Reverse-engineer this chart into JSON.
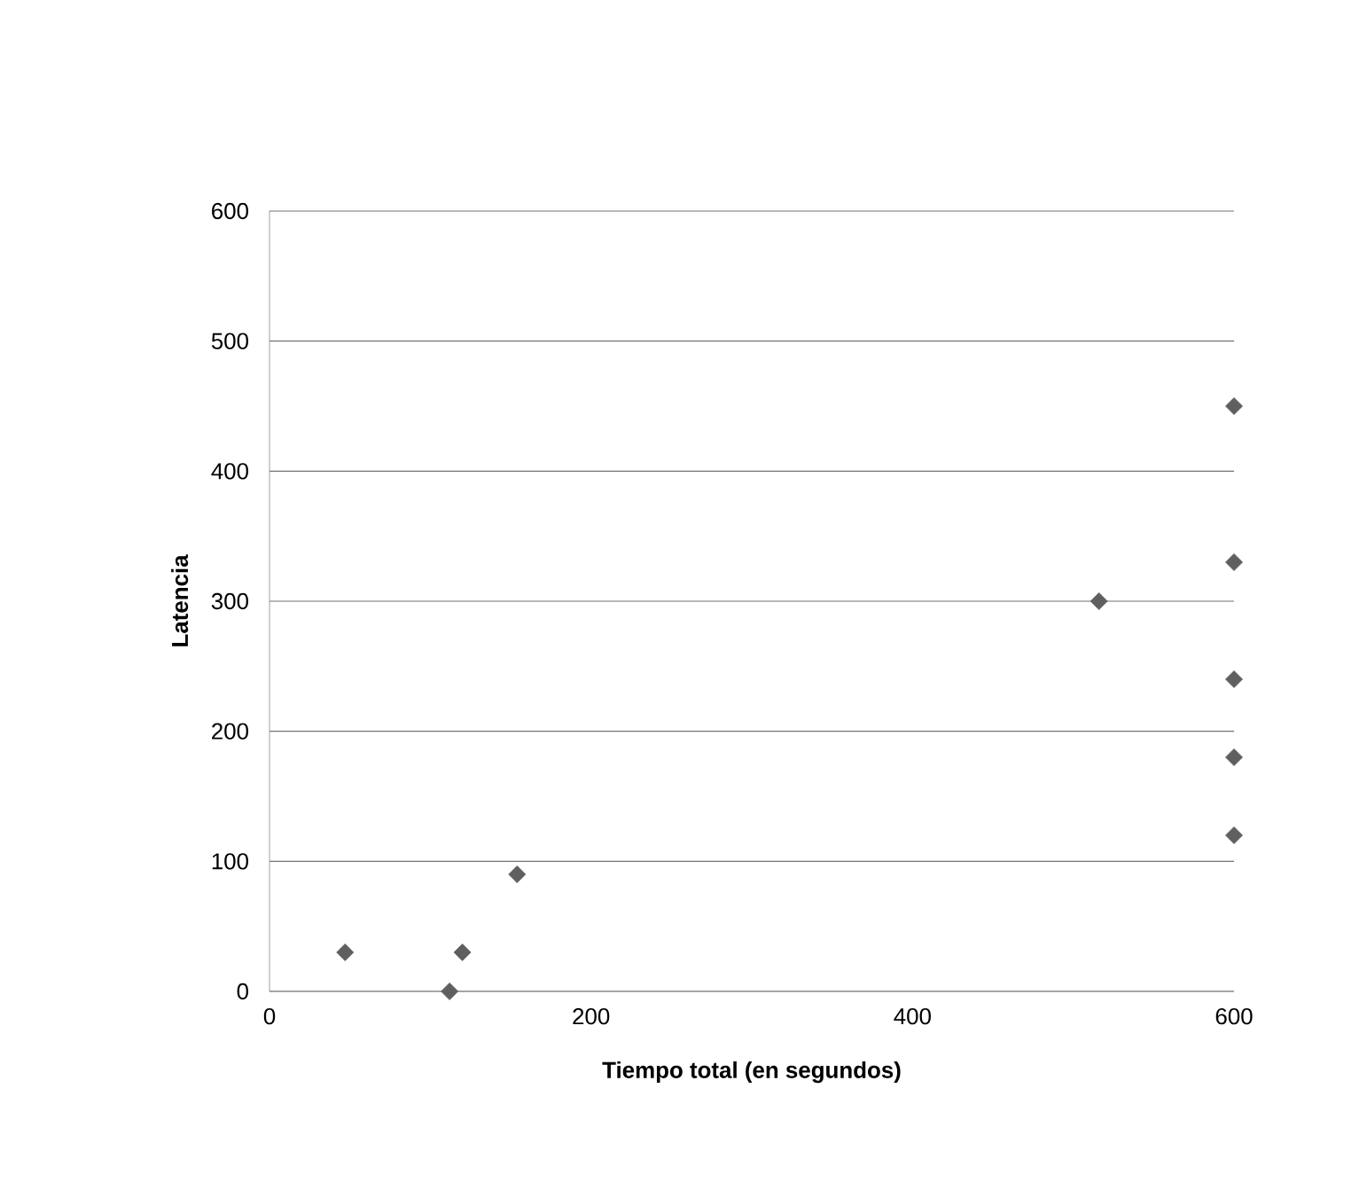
{
  "chart_data": {
    "type": "scatter",
    "xlabel": "Tiempo total (en segundos)",
    "ylabel": "Latencia",
    "series": [
      {
        "color": "#5f5f5f",
        "x": [
          47,
          112,
          120,
          154,
          516,
          600,
          600,
          600,
          600,
          600
        ],
        "values": [
          30,
          0,
          30,
          90,
          300,
          450,
          330,
          240,
          180,
          120
        ]
      }
    ],
    "xlim": [
      0,
      600
    ],
    "ylim": [
      0,
      600
    ],
    "xticks": [
      0,
      200,
      400,
      600
    ],
    "yticks": [
      0,
      100,
      200,
      300,
      400,
      500,
      600
    ],
    "grid": "y",
    "marker": "diamond"
  }
}
